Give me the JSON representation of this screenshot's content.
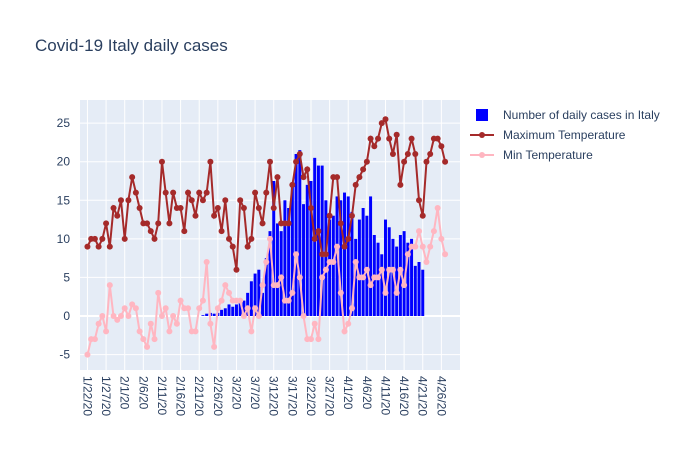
{
  "colors": {
    "plot_bg": "#e5ecf6",
    "grid": "#ffffff",
    "text": "#2a3f5f",
    "bar": "#0000ff",
    "max_temp": "#a52a2a",
    "min_temp": "#ffb6c1"
  },
  "chart_data": {
    "type": "bar",
    "title": "Covid-19 Italy daily cases",
    "xlabel": "",
    "ylabel": "",
    "ylim": [
      -7,
      28
    ],
    "yticks": [
      -5,
      0,
      5,
      10,
      15,
      20,
      25
    ],
    "grid": true,
    "legend_position": "top-right",
    "x_start": "2020-01-22",
    "x_end": "2020-04-29",
    "xlim": [
      "2020-01-20",
      "2020-05-01"
    ],
    "x_tick_labels": [
      "1/22/20",
      "1/27/20",
      "2/1/20",
      "2/6/20",
      "2/11/20",
      "2/16/20",
      "2/21/20",
      "2/26/20",
      "3/2/20",
      "3/7/20",
      "3/12/20",
      "3/17/20",
      "3/22/20",
      "3/27/20",
      "4/1/20",
      "4/6/20",
      "4/11/20",
      "4/16/20",
      "4/21/20",
      "4/26/20"
    ],
    "x_tick_dates": [
      "2020-01-22",
      "2020-01-27",
      "2020-02-01",
      "2020-02-06",
      "2020-02-11",
      "2020-02-16",
      "2020-02-21",
      "2020-02-26",
      "2020-03-02",
      "2020-03-07",
      "2020-03-12",
      "2020-03-17",
      "2020-03-22",
      "2020-03-27",
      "2020-04-01",
      "2020-04-06",
      "2020-04-11",
      "2020-04-16",
      "2020-04-21",
      "2020-04-26"
    ],
    "series": [
      {
        "name": "Number of daily cases in Italy",
        "type": "bar",
        "color": "#0000ff",
        "values": [
          0,
          0,
          0,
          0,
          0,
          0,
          0,
          0,
          0,
          0,
          0,
          0,
          0,
          0,
          0,
          0,
          0,
          0,
          0,
          0,
          0,
          0,
          0,
          0,
          0,
          0,
          0,
          0,
          0,
          0,
          0,
          0.1,
          0.3,
          0.4,
          0.3,
          0.4,
          0.8,
          1.0,
          1.5,
          1.2,
          1.5,
          1.8,
          2.0,
          3.0,
          4.5,
          5.5,
          6.0,
          3.0,
          7.5,
          11.0,
          17.5,
          12.0,
          11.0,
          15.0,
          14.0,
          17.0,
          21.0,
          21.5,
          14.5,
          17.0,
          17.5,
          20.5,
          19.5,
          19.5,
          15.0,
          12.5,
          13.0,
          15.5,
          15.0,
          16.0,
          15.5,
          13.5,
          10.0,
          12.5,
          14.0,
          13.0,
          15.5,
          10.5,
          9.5,
          8.0,
          12.5,
          11.5,
          10.0,
          9.0,
          10.5,
          11.0,
          9.5,
          10.0,
          6.5,
          7.0,
          6.0
        ]
      },
      {
        "name": "Maximum Temperature",
        "type": "line",
        "color": "#a52a2a",
        "values": [
          9,
          10,
          10,
          9,
          10,
          12,
          9,
          14,
          13,
          15,
          10,
          15,
          18,
          16,
          14,
          12,
          12,
          11,
          10,
          12,
          20,
          16,
          12,
          16,
          14,
          14,
          11,
          16,
          15,
          13,
          16,
          15,
          16,
          20,
          13,
          14,
          11,
          15,
          10,
          9,
          6,
          15,
          14,
          9,
          10,
          16,
          14,
          12,
          16,
          20,
          14,
          18,
          12,
          12,
          12,
          17,
          20,
          21,
          18,
          19,
          14,
          10,
          11,
          8,
          8,
          13,
          18,
          18,
          12,
          9,
          10,
          13,
          17,
          18,
          19,
          20,
          23,
          22,
          23,
          25,
          25.5,
          23,
          21,
          23.5,
          17,
          20,
          21,
          23,
          21,
          15,
          13,
          20,
          21,
          23,
          23,
          22,
          20
        ]
      },
      {
        "name": "Min Temperature",
        "type": "line",
        "color": "#ffb6c1",
        "values": [
          -5,
          -3,
          -3,
          -1,
          0,
          -2,
          4,
          0,
          -0.5,
          0,
          1,
          0,
          1.5,
          1,
          -2,
          -3,
          -4,
          -1,
          -3,
          3,
          0,
          1,
          -2,
          0,
          -1,
          2,
          1,
          1,
          -2,
          -2,
          1,
          2,
          7,
          -1,
          -4,
          1,
          2,
          4,
          3,
          2,
          2,
          2,
          0,
          1,
          -2,
          1,
          0,
          4,
          7,
          10,
          4,
          4,
          5,
          2,
          2,
          3,
          8,
          5,
          0,
          -3,
          -3,
          -1,
          -3,
          5,
          6,
          7,
          7,
          9,
          3,
          -2,
          -1,
          1,
          7,
          5,
          5,
          6,
          4,
          5,
          5,
          6,
          3,
          6,
          6,
          3,
          6,
          4,
          8,
          9,
          9,
          11,
          9,
          7,
          9,
          11,
          14,
          10,
          8
        ]
      }
    ]
  }
}
